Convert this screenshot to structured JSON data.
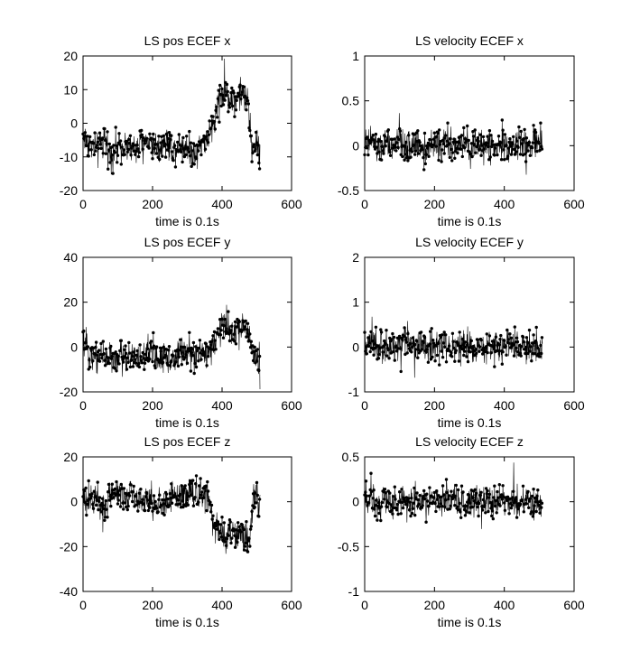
{
  "figure": {
    "background": "#ffffff",
    "line_color": "#000000",
    "marker_color": "#000000"
  },
  "chart_data": [
    {
      "type": "line",
      "title": "LS pos ECEF x",
      "xlabel": "time is 0.1s",
      "xlim": [
        0,
        600
      ],
      "ylim": [
        -20,
        20
      ],
      "xticks": [
        0,
        200,
        400,
        600
      ],
      "yticks": [
        -20,
        -10,
        0,
        10,
        20
      ],
      "xtick_labels": [
        "0",
        "200",
        "400",
        "600"
      ],
      "ytick_labels": [
        "-20",
        "-10",
        "0",
        "10",
        "20"
      ],
      "grid": false,
      "marker": "dot",
      "n_points": 510,
      "x": [
        0,
        20,
        40,
        60,
        80,
        100,
        120,
        140,
        160,
        180,
        200,
        220,
        240,
        260,
        280,
        300,
        320,
        340,
        360,
        380,
        390,
        400,
        420,
        440,
        460,
        475,
        485,
        495,
        505,
        510
      ],
      "y": [
        -4,
        -6,
        -8,
        -5,
        -9,
        -7,
        -6,
        -8,
        -7,
        -5,
        -6,
        -7,
        -5,
        -8,
        -6,
        -7,
        -9,
        -6,
        -5,
        2,
        8,
        9,
        8,
        7,
        9,
        6,
        -7,
        -6,
        -8,
        -9
      ]
    },
    {
      "type": "line",
      "title": "LS velocity ECEF x",
      "xlabel": "time is 0.1s",
      "xlim": [
        0,
        600
      ],
      "ylim": [
        -0.5,
        1
      ],
      "xticks": [
        0,
        200,
        400,
        600
      ],
      "yticks": [
        -0.5,
        0,
        0.5,
        1
      ],
      "xtick_labels": [
        "0",
        "200",
        "400",
        "600"
      ],
      "ytick_labels": [
        "-0.5",
        "0",
        "0.5",
        "1"
      ],
      "grid": false,
      "marker": "dot",
      "n_points": 510,
      "x": [
        0,
        20,
        40,
        60,
        80,
        100,
        120,
        140,
        160,
        180,
        200,
        220,
        240,
        260,
        280,
        300,
        320,
        340,
        360,
        380,
        400,
        420,
        440,
        460,
        480,
        500,
        510
      ],
      "y": [
        0.0,
        0.05,
        -0.05,
        0.02,
        -0.03,
        0.04,
        -0.02,
        0.03,
        0.0,
        -0.04,
        0.02,
        -0.01,
        0.03,
        -0.02,
        0.01,
        0.0,
        -0.03,
        0.02,
        0.0,
        -0.02,
        0.03,
        -0.01,
        0.02,
        0.0,
        0.01,
        0.03,
        0.05
      ]
    },
    {
      "type": "line",
      "title": "LS pos ECEF y",
      "xlabel": "time is 0.1s",
      "xlim": [
        0,
        600
      ],
      "ylim": [
        -20,
        40
      ],
      "xticks": [
        0,
        200,
        400,
        600
      ],
      "yticks": [
        -20,
        0,
        20,
        40
      ],
      "xtick_labels": [
        "0",
        "200",
        "400",
        "600"
      ],
      "ytick_labels": [
        "-20",
        "0",
        "20",
        "40"
      ],
      "grid": false,
      "marker": "dot",
      "n_points": 510,
      "x": [
        0,
        20,
        40,
        60,
        80,
        100,
        120,
        140,
        160,
        180,
        200,
        220,
        240,
        260,
        280,
        300,
        320,
        340,
        360,
        380,
        400,
        420,
        440,
        460,
        480,
        490,
        500,
        510
      ],
      "y": [
        2,
        -2,
        -4,
        -3,
        -5,
        -6,
        -4,
        -3,
        -5,
        -4,
        -2,
        -6,
        -4,
        -5,
        -3,
        -2,
        -4,
        -3,
        -2,
        4,
        8,
        9,
        7,
        8,
        6,
        -3,
        -4,
        -5
      ]
    },
    {
      "type": "line",
      "title": "LS velocity ECEF y",
      "xlabel": "time is 0.1s",
      "xlim": [
        0,
        600
      ],
      "ylim": [
        -1,
        2
      ],
      "xticks": [
        0,
        200,
        400,
        600
      ],
      "yticks": [
        -1,
        0,
        1,
        2
      ],
      "xtick_labels": [
        "0",
        "200",
        "400",
        "600"
      ],
      "ytick_labels": [
        "-1",
        "0",
        "1",
        "2"
      ],
      "grid": false,
      "marker": "dot",
      "n_points": 510,
      "x": [
        0,
        20,
        40,
        60,
        80,
        100,
        120,
        140,
        160,
        180,
        200,
        220,
        240,
        260,
        280,
        300,
        320,
        340,
        360,
        380,
        400,
        420,
        440,
        460,
        480,
        500,
        510
      ],
      "y": [
        0.0,
        0.05,
        -0.05,
        0.03,
        -0.04,
        0.02,
        0.3,
        -0.02,
        0.04,
        -0.03,
        0.02,
        0.0,
        -0.02,
        0.03,
        -0.01,
        0.02,
        -0.03,
        0.01,
        0.0,
        -0.02,
        0.03,
        -0.01,
        0.02,
        0.0,
        -0.02,
        0.01,
        -0.03
      ]
    },
    {
      "type": "line",
      "title": "LS pos ECEF z",
      "xlabel": "time is 0.1s",
      "xlim": [
        0,
        600
      ],
      "ylim": [
        -40,
        20
      ],
      "xticks": [
        0,
        200,
        400,
        600
      ],
      "yticks": [
        -40,
        -20,
        0,
        20
      ],
      "xtick_labels": [
        "0",
        "200",
        "400",
        "600"
      ],
      "ytick_labels": [
        "-40",
        "-20",
        "0",
        "20"
      ],
      "grid": false,
      "marker": "dot",
      "n_points": 510,
      "x": [
        0,
        20,
        40,
        60,
        80,
        100,
        120,
        140,
        160,
        180,
        200,
        220,
        240,
        260,
        280,
        300,
        320,
        340,
        360,
        380,
        400,
        420,
        440,
        460,
        480,
        490,
        500,
        510
      ],
      "y": [
        1,
        -1,
        2,
        -5,
        4,
        6,
        3,
        4,
        2,
        1,
        -2,
        -1,
        0,
        3,
        2,
        4,
        5,
        3,
        1,
        -13,
        -14,
        -15,
        -13,
        -16,
        -15,
        2,
        1,
        -1
      ]
    },
    {
      "type": "line",
      "title": "LS velocity ECEF z",
      "xlabel": "time is 0.1s",
      "xlim": [
        0,
        600
      ],
      "ylim": [
        -1,
        0.5
      ],
      "xticks": [
        0,
        200,
        400,
        600
      ],
      "yticks": [
        -1,
        -0.5,
        0,
        0.5
      ],
      "xtick_labels": [
        "0",
        "200",
        "400",
        "600"
      ],
      "ytick_labels": [
        "-1",
        "-0.5",
        "0",
        "0.5"
      ],
      "grid": false,
      "marker": "dot",
      "n_points": 510,
      "x": [
        0,
        20,
        40,
        60,
        80,
        100,
        120,
        140,
        160,
        180,
        200,
        220,
        240,
        260,
        280,
        300,
        320,
        340,
        360,
        380,
        400,
        420,
        440,
        460,
        480,
        500,
        510
      ],
      "y": [
        0.0,
        0.05,
        -0.04,
        0.03,
        -0.02,
        0.04,
        -0.05,
        0.02,
        0.0,
        -0.03,
        0.04,
        -0.02,
        0.03,
        0.0,
        -0.04,
        0.02,
        0.05,
        -0.01,
        0.0,
        -0.03,
        0.04,
        -0.02,
        0.01,
        0.03,
        -0.02,
        0.0,
        0.02
      ]
    }
  ]
}
